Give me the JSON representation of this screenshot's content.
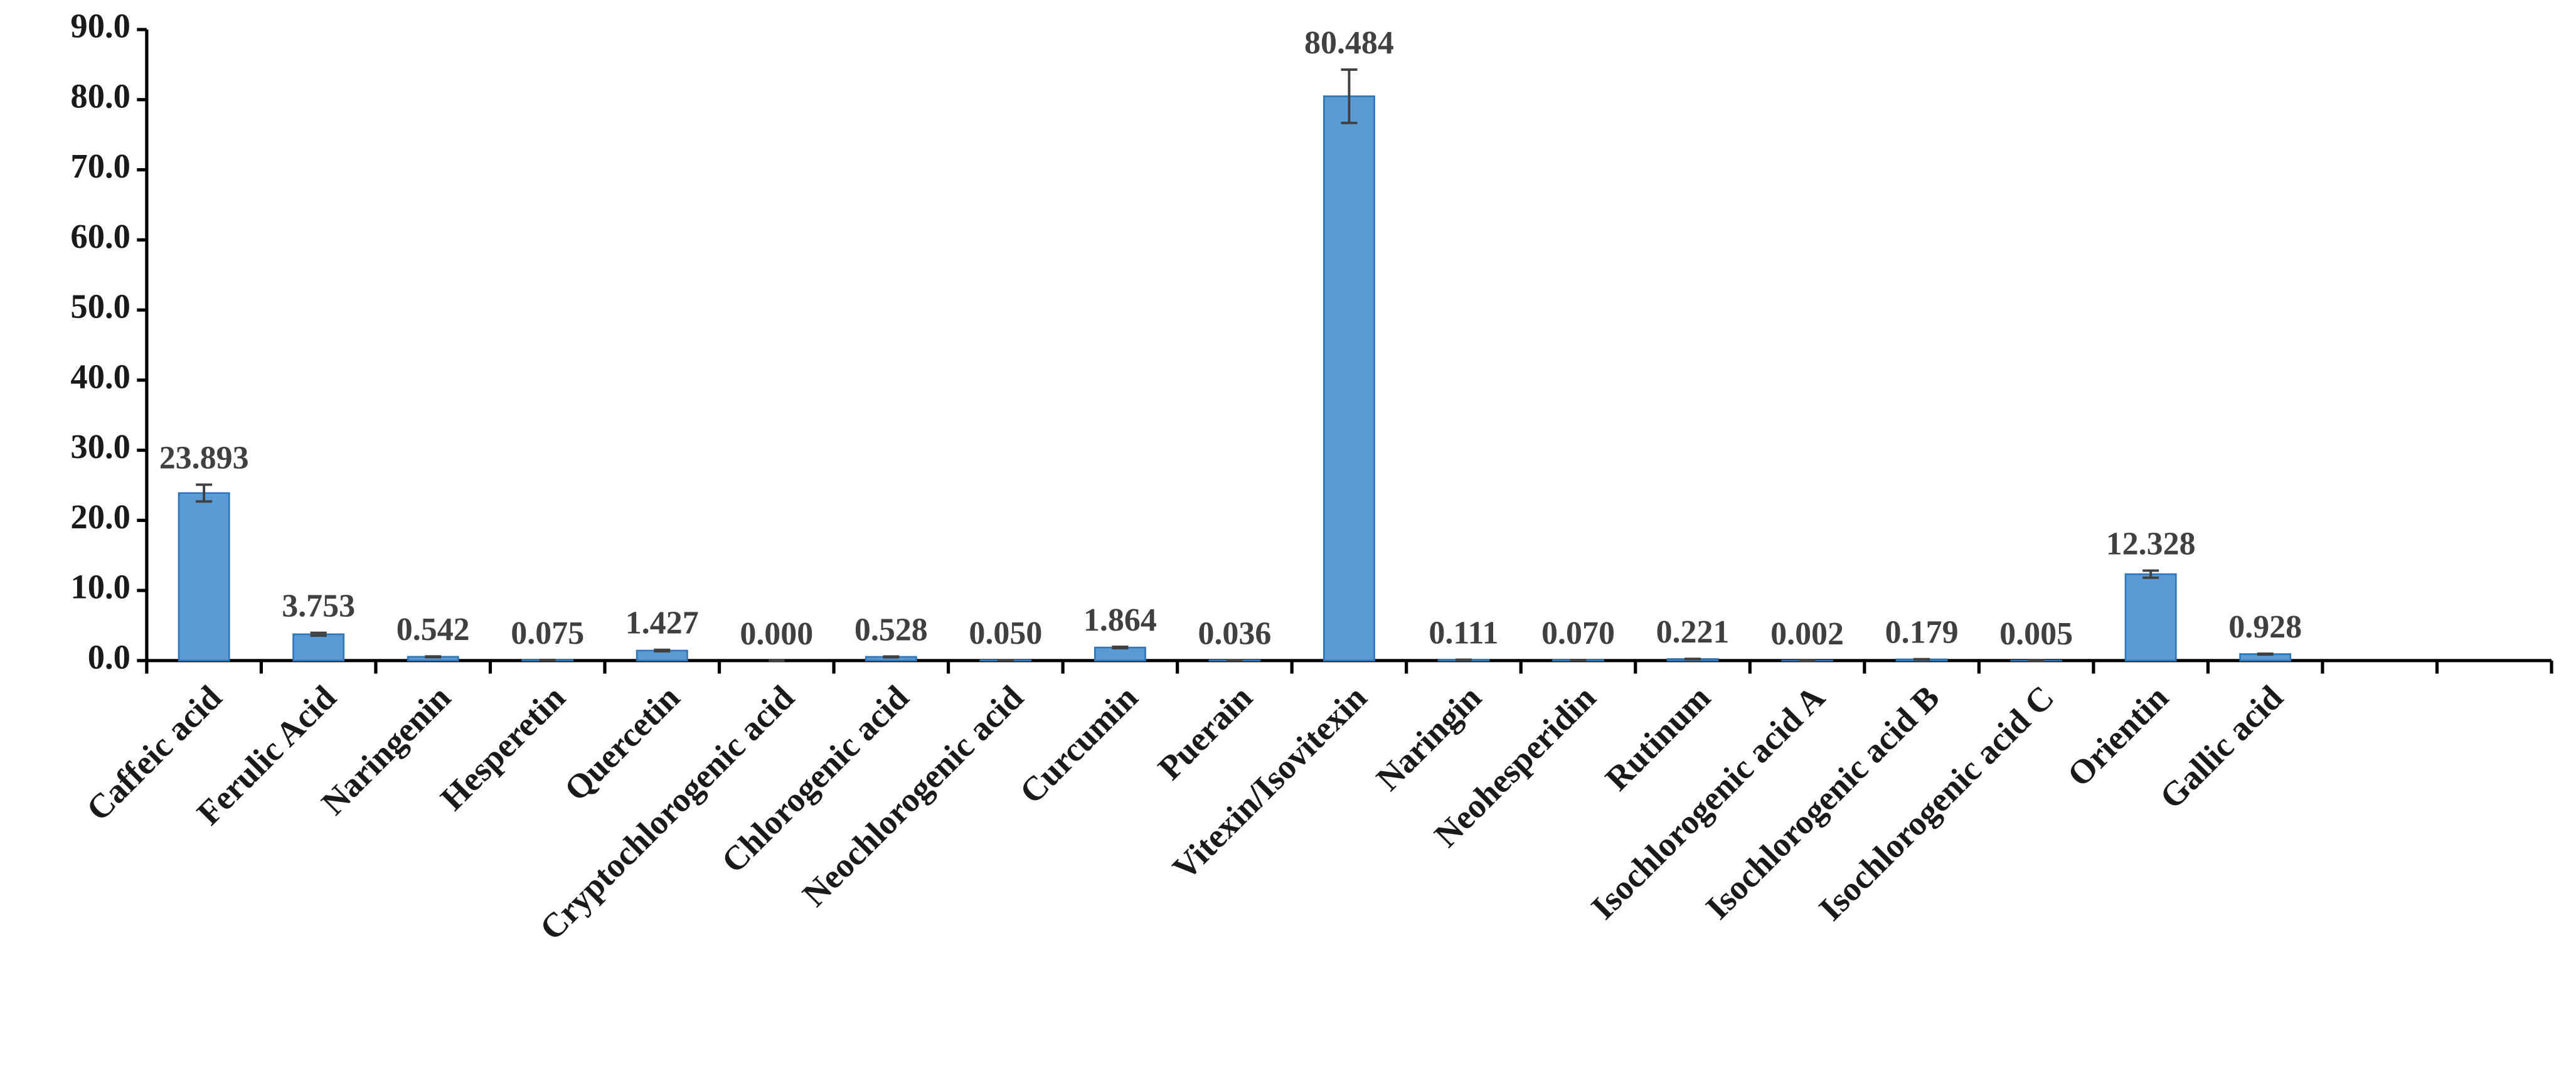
{
  "chart_data": {
    "type": "bar",
    "categories": [
      "Caffeic acid",
      "Ferulic Acid",
      "Naringenin",
      "Hesperetin",
      "Quercetin",
      "Cryptochlorogenic acid",
      "Chlorogenic acid",
      "Neochlorogenic acid",
      "Curcumin",
      "Puerain",
      "Vitexin/Isovitexin",
      "Naringin",
      "Neohesperidin",
      "Rutinum",
      "Isochlorogenic acid A",
      "Isochlorogenic acid B",
      "Isochlorogenic acid C",
      "Orientin",
      "Gallic acid",
      null,
      null
    ],
    "values": [
      23.893,
      3.753,
      0.542,
      0.075,
      1.427,
      0,
      0.528,
      0.05,
      1.864,
      0.036,
      80.484,
      0.111,
      0.07,
      0.221,
      0.002,
      0.179,
      0.005,
      12.328,
      0.928,
      null,
      null
    ],
    "value_labels": [
      "23.893",
      "3.753",
      "0.542",
      "0.075",
      "1.427",
      "0.000",
      "0.528",
      "0.050",
      "1.864",
      "0.036",
      "80.484",
      "0.111",
      "0.070",
      "0.221",
      "0.002",
      "0.179",
      "0.005",
      "12.328",
      "0.928",
      null,
      null
    ],
    "errors": [
      1.2,
      0.2,
      0.05,
      0.01,
      0.1,
      0,
      0.05,
      0.01,
      0.1,
      0.01,
      3.8,
      0.01,
      0.01,
      0.02,
      0,
      0.02,
      0,
      0.5,
      0.05,
      null,
      null
    ],
    "color": "#5b9bd5",
    "ylim": [
      0,
      90
    ],
    "yticks": [
      {
        "value": 0,
        "label": "0.0"
      },
      {
        "value": 10,
        "label": "10.0"
      },
      {
        "value": 20,
        "label": "20.0"
      },
      {
        "value": 30,
        "label": "30.0"
      },
      {
        "value": 40,
        "label": "40.0"
      },
      {
        "value": 50,
        "label": "50.0"
      },
      {
        "value": 60,
        "label": "60.0"
      },
      {
        "value": 70,
        "label": "70.0"
      },
      {
        "value": 80,
        "label": "80.0"
      },
      {
        "value": 90,
        "label": "90.0"
      }
    ],
    "grid": false
  }
}
